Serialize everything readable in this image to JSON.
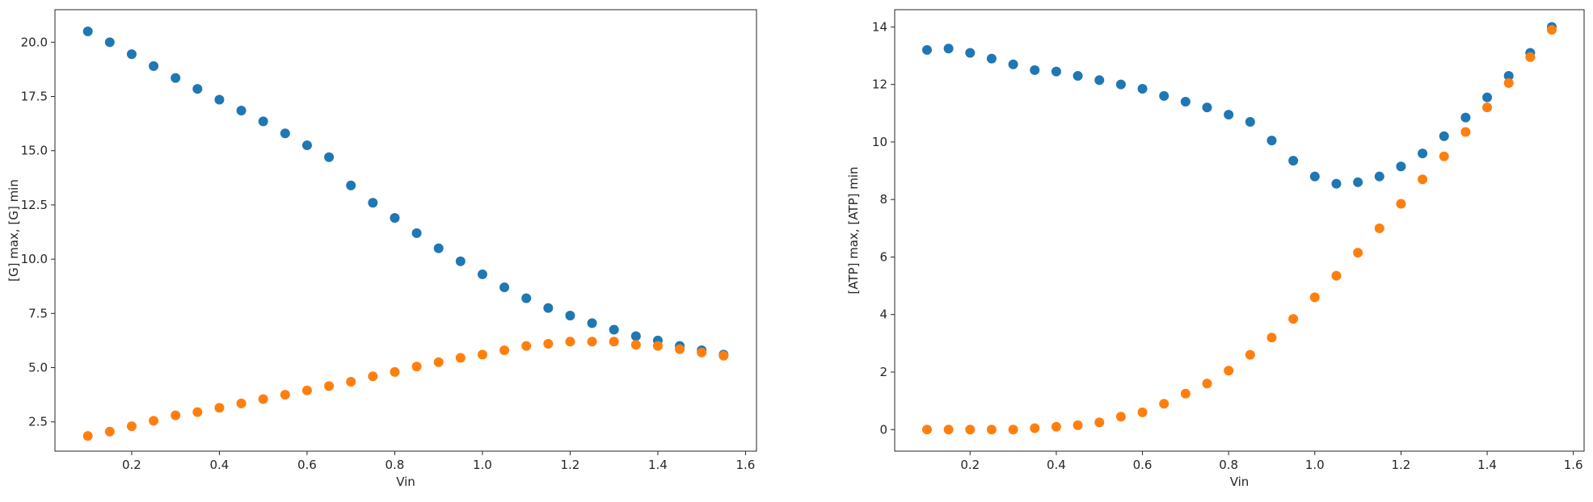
{
  "colors": {
    "series_0": "#1f77b4",
    "series_1": "#ff7f0e",
    "axes": "#262626",
    "background": "#ffffff"
  },
  "chart_data": [
    {
      "type": "scatter",
      "title": "",
      "xlabel": "Vin",
      "ylabel": "[G] max, [G] min",
      "xlim": [
        0.025,
        1.625
      ],
      "ylim": [
        1.15,
        21.5
      ],
      "xticks": [
        0.2,
        0.4,
        0.6,
        0.8,
        1.0,
        1.2,
        1.4,
        1.6
      ],
      "xtick_labels": [
        "0.2",
        "0.4",
        "0.6",
        "0.8",
        "1.0",
        "1.2",
        "1.4",
        "1.6"
      ],
      "yticks": [
        2.5,
        5.0,
        7.5,
        10.0,
        12.5,
        15.0,
        17.5,
        20.0
      ],
      "ytick_labels": [
        "2.5",
        "5.0",
        "7.5",
        "10.0",
        "12.5",
        "15.0",
        "17.5",
        "20.0"
      ],
      "grid": false,
      "legend": "none",
      "x": [
        0.1,
        0.15,
        0.2,
        0.25,
        0.3,
        0.35,
        0.4,
        0.45,
        0.5,
        0.55,
        0.6,
        0.65,
        0.7,
        0.75,
        0.8,
        0.85,
        0.9,
        0.95,
        1.0,
        1.05,
        1.1,
        1.15,
        1.2,
        1.25,
        1.3,
        1.35,
        1.4,
        1.45,
        1.5,
        1.55
      ],
      "series": [
        {
          "color": "#1f77b4",
          "values": [
            20.5,
            20.0,
            19.45,
            18.9,
            18.35,
            17.85,
            17.35,
            16.85,
            16.35,
            15.8,
            15.25,
            14.7,
            13.4,
            12.6,
            11.9,
            11.2,
            10.5,
            9.9,
            9.3,
            8.7,
            8.2,
            7.75,
            7.4,
            7.05,
            6.75,
            6.45,
            6.25,
            6.0,
            5.8,
            5.6
          ]
        },
        {
          "color": "#ff7f0e",
          "values": [
            1.85,
            2.05,
            2.3,
            2.55,
            2.8,
            2.95,
            3.15,
            3.35,
            3.55,
            3.75,
            3.95,
            4.15,
            4.35,
            4.6,
            4.8,
            5.05,
            5.25,
            5.45,
            5.6,
            5.8,
            6.0,
            6.1,
            6.2,
            6.2,
            6.2,
            6.05,
            6.0,
            5.85,
            5.7,
            5.55
          ]
        }
      ]
    },
    {
      "type": "scatter",
      "title": "",
      "xlabel": "Vin",
      "ylabel": "[ATP] max, [ATP] min",
      "xlim": [
        0.025,
        1.625
      ],
      "ylim": [
        -0.75,
        14.6
      ],
      "xticks": [
        0.2,
        0.4,
        0.6,
        0.8,
        1.0,
        1.2,
        1.4,
        1.6
      ],
      "xtick_labels": [
        "0.2",
        "0.4",
        "0.6",
        "0.8",
        "1.0",
        "1.2",
        "1.4",
        "1.6"
      ],
      "yticks": [
        0,
        2,
        4,
        6,
        8,
        10,
        12,
        14
      ],
      "ytick_labels": [
        "0",
        "2",
        "4",
        "6",
        "8",
        "10",
        "12",
        "14"
      ],
      "grid": false,
      "legend": "none",
      "x": [
        0.1,
        0.15,
        0.2,
        0.25,
        0.3,
        0.35,
        0.4,
        0.45,
        0.5,
        0.55,
        0.6,
        0.65,
        0.7,
        0.75,
        0.8,
        0.85,
        0.9,
        0.95,
        1.0,
        1.05,
        1.1,
        1.15,
        1.2,
        1.25,
        1.3,
        1.35,
        1.4,
        1.45,
        1.5,
        1.55
      ],
      "series": [
        {
          "color": "#1f77b4",
          "values": [
            13.2,
            13.25,
            13.1,
            12.9,
            12.7,
            12.5,
            12.45,
            12.3,
            12.15,
            12.0,
            11.85,
            11.6,
            11.4,
            11.2,
            10.95,
            10.7,
            10.05,
            9.35,
            8.8,
            8.55,
            8.6,
            8.8,
            9.15,
            9.6,
            10.2,
            10.85,
            11.55,
            12.3,
            13.1,
            14.0
          ]
        },
        {
          "color": "#ff7f0e",
          "values": [
            0.0,
            0.0,
            0.0,
            0.0,
            0.0,
            0.05,
            0.1,
            0.15,
            0.25,
            0.45,
            0.6,
            0.9,
            1.25,
            1.6,
            2.05,
            2.6,
            3.2,
            3.85,
            4.6,
            5.35,
            6.15,
            7.0,
            7.85,
            8.7,
            9.5,
            10.35,
            11.2,
            12.05,
            12.95,
            13.9
          ]
        }
      ]
    }
  ]
}
